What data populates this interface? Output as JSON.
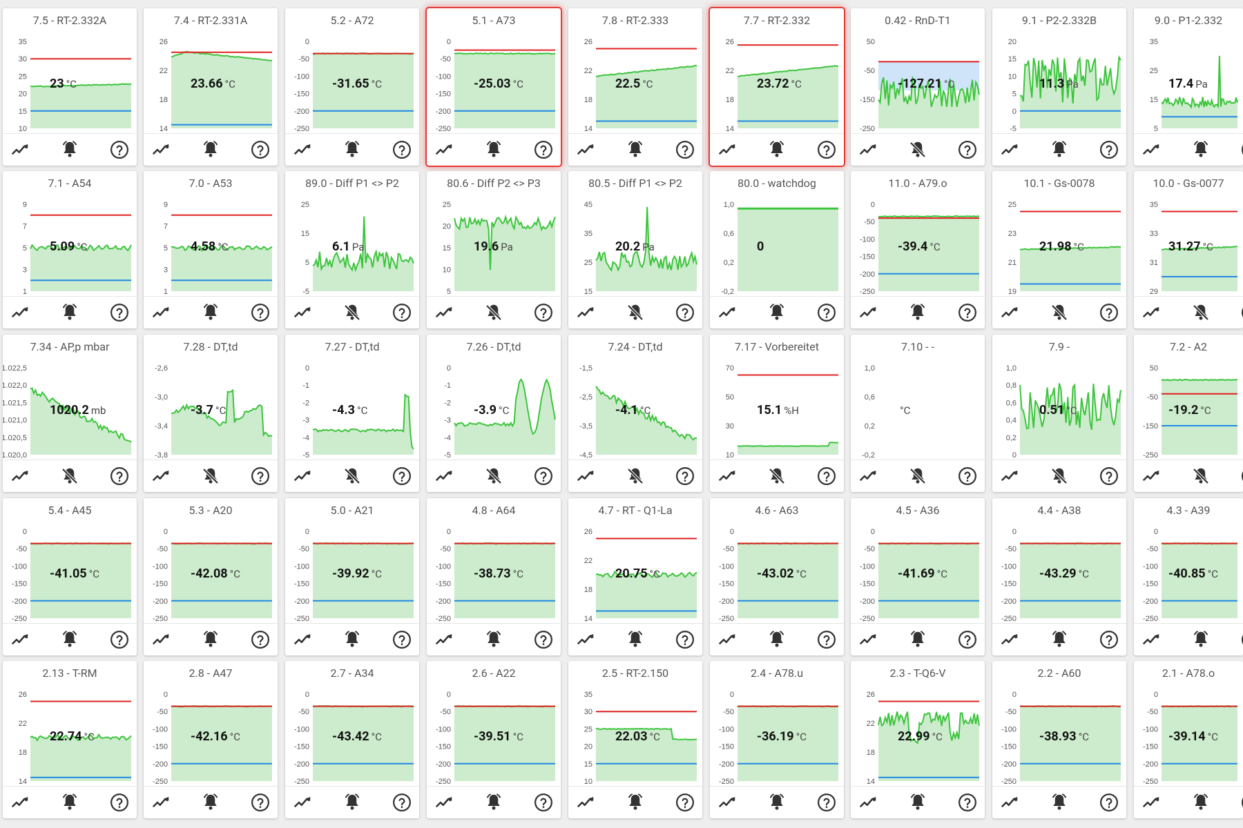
{
  "colors": {
    "upper": "#e02020",
    "upper_dark": "#a33",
    "lower": "#1e88e5",
    "line": "#3dc43d",
    "fill": "#cdeccd",
    "fill_blue": "#cfe4f8",
    "alarm": "#e53935"
  },
  "icons": {
    "chart": "chart-icon",
    "bell": "bell-icon",
    "bell_off": "bell-off-icon",
    "help": "help-icon"
  },
  "cards": [
    {
      "title": "7.5 - RT-2.332A",
      "value": "23",
      "unit": "°C",
      "ticks": [
        "35",
        "30",
        "25",
        "20",
        "15",
        "10"
      ],
      "yr": [
        10,
        35
      ],
      "upper": 30,
      "lower": 15,
      "bell": "on",
      "alarm": false,
      "style": "temp",
      "level": 0.48
    },
    {
      "title": "7.4 - RT-2.331A",
      "value": "23.66",
      "unit": "°C",
      "ticks": [
        "26",
        "22",
        "18",
        "14"
      ],
      "yr": [
        14,
        26
      ],
      "upper": 24.5,
      "lower": 14.5,
      "bell": "on",
      "alarm": false,
      "style": "tempbump",
      "level": 0.8
    },
    {
      "title": "5.2 - A72",
      "value": "-31.65",
      "unit": "°C",
      "ticks": [
        "0",
        "-50",
        "-100",
        "-150",
        "-200",
        "-250"
      ],
      "yr": [
        -250,
        0
      ],
      "upper": -35,
      "lower": -200,
      "bell": "on",
      "alarm": false,
      "style": "neg",
      "level": 0.85
    },
    {
      "title": "5.1 - A73",
      "value": "-25.03",
      "unit": "°C",
      "ticks": [
        "0",
        "-50",
        "-100",
        "-150",
        "-200",
        "-250"
      ],
      "yr": [
        -250,
        0
      ],
      "upper": -25,
      "lower": -200,
      "bell": "on",
      "alarm": true,
      "style": "neg",
      "level": 0.86
    },
    {
      "title": "7.8 - RT-2.333",
      "value": "22.5",
      "unit": "°C",
      "ticks": [
        "26",
        "22",
        "18",
        "14"
      ],
      "yr": [
        14,
        26
      ],
      "upper": 25,
      "lower": 15,
      "bell": "on",
      "alarm": false,
      "style": "rise",
      "level": 0.66
    },
    {
      "title": "7.7 - RT-2.332",
      "value": "23.72",
      "unit": "°C",
      "ticks": [
        "26",
        "22",
        "18",
        "14"
      ],
      "yr": [
        14,
        26
      ],
      "upper": 25.5,
      "lower": 15,
      "bell": "on",
      "alarm": true,
      "style": "rise",
      "level": 0.7
    },
    {
      "title": "0.42 - RnD-T1",
      "value": "-127.21",
      "unit": "°C",
      "ticks": [
        "50",
        "-50",
        "-150",
        "-250"
      ],
      "yr": [
        -250,
        50
      ],
      "upper": -20,
      "lower": null,
      "bell": "off",
      "alarm": false,
      "style": "blueband",
      "level": 0.45
    },
    {
      "title": "9.1 - P2-2.332B",
      "value": "11.3",
      "unit": "Pa",
      "ticks": [
        "20",
        "15",
        "10",
        "5",
        "0",
        "-5"
      ],
      "yr": [
        -5,
        20
      ],
      "upper": null,
      "lower": 0,
      "bell": "on",
      "alarm": false,
      "style": "noise",
      "level": 0.6
    },
    {
      "title": "9.0 - P1-2.332",
      "value": "17.4",
      "unit": "Pa",
      "ticks": [
        "35",
        "25",
        "15",
        "5"
      ],
      "yr": [
        5,
        35
      ],
      "upper": null,
      "lower": 9,
      "bell": "on",
      "alarm": false,
      "style": "spike",
      "level": 0.3
    },
    {
      "title": "7.1 - A54",
      "value": "5.09",
      "unit": "°C",
      "ticks": [
        "9",
        "7",
        "5",
        "3",
        "1"
      ],
      "yr": [
        1,
        9
      ],
      "upper": 8,
      "lower": 2,
      "bell": "on",
      "alarm": false,
      "style": "wavy",
      "level": 0.5
    },
    {
      "title": "7.0 - A53",
      "value": "4.58",
      "unit": "°C",
      "ticks": [
        "9",
        "7",
        "5",
        "3",
        "1"
      ],
      "yr": [
        1,
        9
      ],
      "upper": 8,
      "lower": 2,
      "bell": "on",
      "alarm": false,
      "style": "wavy",
      "level": 0.45
    },
    {
      "title": "89.0 - Diff P1 <> P2",
      "value": "6.1",
      "unit": "Pa",
      "ticks": [
        "25",
        "15",
        "5",
        "-5"
      ],
      "yr": [
        -5,
        25
      ],
      "upper": null,
      "lower": null,
      "bell": "off",
      "alarm": false,
      "style": "spikemid",
      "level": 0.35
    },
    {
      "title": "80.6 - Diff P2 <> P3",
      "value": "19.6",
      "unit": "Pa",
      "ticks": [
        "25",
        "20",
        "15",
        "10",
        "5"
      ],
      "yr": [
        5,
        25
      ],
      "upper": null,
      "lower": null,
      "bell": "off",
      "alarm": false,
      "style": "noisehigh",
      "level": 0.75
    },
    {
      "title": "80.5 - Diff P1 <> P2",
      "value": "20.2",
      "unit": "Pa",
      "ticks": [
        "45",
        "35",
        "25",
        "15"
      ],
      "yr": [
        15,
        45
      ],
      "upper": null,
      "lower": null,
      "bell": "off",
      "alarm": false,
      "style": "spikemid",
      "level": 0.3
    },
    {
      "title": "80.0 - watchdog",
      "value": "0",
      "unit": "",
      "ticks": [
        "1,0",
        "0,6",
        "0,2",
        "-0,2"
      ],
      "yr": [
        -0.2,
        1.0
      ],
      "upper": null,
      "lower": null,
      "bell": "on",
      "alarm": false,
      "style": "solid",
      "level": 0.5
    },
    {
      "title": "11.0 - A79.o",
      "value": "-39.4",
      "unit": "°C",
      "ticks": [
        "0",
        "-50",
        "-100",
        "-150",
        "-200",
        "-250"
      ],
      "yr": [
        -250,
        0
      ],
      "upper": -40,
      "lower": -200,
      "bell": "on",
      "alarm": false,
      "style": "neg",
      "level": 0.83
    },
    {
      "title": "10.1 - Gs-0078",
      "value": "21.98",
      "unit": "°C",
      "ticks": [
        "25",
        "23",
        "21",
        "19"
      ],
      "yr": [
        19,
        25
      ],
      "upper": 24.5,
      "lower": 19.5,
      "bell": "off",
      "alarm": false,
      "style": "temp",
      "level": 0.5
    },
    {
      "title": "10.0 - Gs-0077",
      "value": "31.27",
      "unit": "°C",
      "ticks": [
        "35",
        "33",
        "31",
        "29"
      ],
      "yr": [
        29,
        35
      ],
      "upper": 34.5,
      "lower": 30,
      "bell": "off",
      "alarm": false,
      "style": "temp",
      "level": 0.4
    },
    {
      "title": "7.34 - AP,p mbar",
      "value": "1020.2",
      "unit": "mb",
      "ticks": [
        "1.022,5",
        "1.022,0",
        "1.021,5",
        "1.021,0",
        "1.020,5",
        "1.020,0"
      ],
      "yr": [
        1020,
        1022.5
      ],
      "upper": null,
      "lower": null,
      "bell": "off",
      "alarm": false,
      "style": "down",
      "level": 0.5
    },
    {
      "title": "7.28 - DT,td",
      "value": "-3.7",
      "unit": "°C",
      "ticks": [
        "-2,6",
        "-3,0",
        "-3,4",
        "-3,8"
      ],
      "yr": [
        -3.8,
        -2.6
      ],
      "upper": null,
      "lower": null,
      "bell": "off",
      "alarm": false,
      "style": "bumpy",
      "level": 0.5
    },
    {
      "title": "7.27 - DT,td",
      "value": "-4.3",
      "unit": "°C",
      "ticks": [
        "0",
        "-1",
        "-2",
        "-3",
        "-4",
        "-5"
      ],
      "yr": [
        -5,
        0
      ],
      "upper": null,
      "lower": null,
      "bell": "off",
      "alarm": false,
      "style": "tail",
      "level": 0.3
    },
    {
      "title": "7.26 - DT,td",
      "value": "-3.9",
      "unit": "°C",
      "ticks": [
        "0",
        "-1",
        "-2",
        "-3",
        "-4",
        "-5"
      ],
      "yr": [
        -5,
        0
      ],
      "upper": null,
      "lower": null,
      "bell": "off",
      "alarm": false,
      "style": "peaks",
      "level": 0.3
    },
    {
      "title": "7.24 - DT,td",
      "value": "-4.1",
      "unit": "°C",
      "ticks": [
        "-1,5",
        "-2,5",
        "-3,5",
        "-4,5"
      ],
      "yr": [
        -4.5,
        -1.5
      ],
      "upper": null,
      "lower": null,
      "bell": "off",
      "alarm": false,
      "style": "down",
      "level": 0.5
    },
    {
      "title": "7.17 - Vorbereitet",
      "value": "15.1",
      "unit": "%H",
      "ticks": [
        "70",
        "50",
        "30",
        "10"
      ],
      "yr": [
        10,
        70
      ],
      "upper": 65,
      "lower": null,
      "bell": "off",
      "alarm": false,
      "style": "flatlow",
      "level": 0.1
    },
    {
      "title": "7.10 - -",
      "value": "",
      "unit": "°C",
      "ticks": [
        "1,0",
        "0,6",
        "0,2",
        "-0,2"
      ],
      "yr": [
        -0.2,
        1.0
      ],
      "upper": null,
      "lower": null,
      "bell": "off",
      "alarm": false,
      "style": "empty",
      "level": 0.5
    },
    {
      "title": "7.9 -",
      "value": "0.51",
      "unit": "°C",
      "ticks": [
        "1,0",
        "0,8",
        "0,6",
        "0,4",
        "0,2",
        "0"
      ],
      "yr": [
        0,
        1
      ],
      "upper": null,
      "lower": null,
      "bell": "off",
      "alarm": false,
      "style": "noise",
      "level": 0.5
    },
    {
      "title": "7.2 - A2",
      "value": "-19.2",
      "unit": "°C",
      "ticks": [
        "50",
        "-50",
        "-150",
        "-250"
      ],
      "yr": [
        -250,
        50
      ],
      "upper": -40,
      "lower": -150,
      "bell": "off",
      "alarm": false,
      "style": "neg",
      "level": 0.7
    },
    {
      "title": "5.4 - A45",
      "value": "-41.05",
      "unit": "°C",
      "ticks": [
        "0",
        "-50",
        "-100",
        "-150",
        "-200",
        "-250"
      ],
      "yr": [
        -250,
        0
      ],
      "upper": -35,
      "lower": -200,
      "bell": "on",
      "alarm": false,
      "style": "neg",
      "level": 0.83
    },
    {
      "title": "5.3 - A20",
      "value": "-42.08",
      "unit": "°C",
      "ticks": [
        "0",
        "-50",
        "-100",
        "-150",
        "-200",
        "-250"
      ],
      "yr": [
        -250,
        0
      ],
      "upper": -35,
      "lower": -200,
      "bell": "on",
      "alarm": false,
      "style": "neg",
      "level": 0.83
    },
    {
      "title": "5.0 - A21",
      "value": "-39.92",
      "unit": "°C",
      "ticks": [
        "0",
        "-50",
        "-100",
        "-150",
        "-200",
        "-250"
      ],
      "yr": [
        -250,
        0
      ],
      "upper": -35,
      "lower": -200,
      "bell": "on",
      "alarm": false,
      "style": "neg",
      "level": 0.83
    },
    {
      "title": "4.8 - A64",
      "value": "-38.73",
      "unit": "°C",
      "ticks": [
        "0",
        "-50",
        "-100",
        "-150",
        "-200",
        "-250"
      ],
      "yr": [
        -250,
        0
      ],
      "upper": -35,
      "lower": -200,
      "bell": "on",
      "alarm": false,
      "style": "neg",
      "level": 0.83
    },
    {
      "title": "4.7 - RT - Q1-La",
      "value": "20.75",
      "unit": "°C",
      "ticks": [
        "26",
        "22",
        "18",
        "14"
      ],
      "yr": [
        14,
        26
      ],
      "upper": 25,
      "lower": 15,
      "bell": "on",
      "alarm": false,
      "style": "wavy",
      "level": 0.55
    },
    {
      "title": "4.6 - A63",
      "value": "-43.02",
      "unit": "°C",
      "ticks": [
        "0",
        "-50",
        "-100",
        "-150",
        "-200",
        "-250"
      ],
      "yr": [
        -250,
        0
      ],
      "upper": -35,
      "lower": -200,
      "bell": "on",
      "alarm": false,
      "style": "neg",
      "level": 0.83
    },
    {
      "title": "4.5 - A36",
      "value": "-41.69",
      "unit": "°C",
      "ticks": [
        "0",
        "-50",
        "-100",
        "-150",
        "-200",
        "-250"
      ],
      "yr": [
        -250,
        0
      ],
      "upper": -35,
      "lower": -200,
      "bell": "on",
      "alarm": false,
      "style": "neg",
      "level": 0.83
    },
    {
      "title": "4.4 - A38",
      "value": "-43.29",
      "unit": "°C",
      "ticks": [
        "0",
        "-50",
        "-100",
        "-150",
        "-200",
        "-250"
      ],
      "yr": [
        -250,
        0
      ],
      "upper": -35,
      "lower": -200,
      "bell": "on",
      "alarm": false,
      "style": "neg",
      "level": 0.83
    },
    {
      "title": "4.3 - A39",
      "value": "-40.85",
      "unit": "°C",
      "ticks": [
        "0",
        "-50",
        "-100",
        "-150",
        "-200",
        "-250"
      ],
      "yr": [
        -250,
        0
      ],
      "upper": -35,
      "lower": -200,
      "bell": "on",
      "alarm": false,
      "style": "neg",
      "level": 0.83
    },
    {
      "title": "2.13 - T-RM",
      "value": "22.74",
      "unit": "°C",
      "ticks": [
        "26",
        "22",
        "18",
        "14"
      ],
      "yr": [
        14,
        26
      ],
      "upper": 25,
      "lower": 14.5,
      "bell": "on",
      "alarm": false,
      "style": "wavy",
      "level": 0.68
    },
    {
      "title": "2.8 - A47",
      "value": "-42.16",
      "unit": "°C",
      "ticks": [
        "0",
        "-50",
        "-100",
        "-150",
        "-200",
        "-250"
      ],
      "yr": [
        -250,
        0
      ],
      "upper": -35,
      "lower": -200,
      "bell": "on",
      "alarm": false,
      "style": "neg",
      "level": 0.83
    },
    {
      "title": "2.7 - A34",
      "value": "-43.42",
      "unit": "°C",
      "ticks": [
        "0",
        "-50",
        "-100",
        "-150",
        "-200",
        "-250"
      ],
      "yr": [
        -250,
        0
      ],
      "upper": -35,
      "lower": -200,
      "bell": "on",
      "alarm": false,
      "style": "neg",
      "level": 0.83
    },
    {
      "title": "2.6 - A22",
      "value": "-39.51",
      "unit": "°C",
      "ticks": [
        "0",
        "-50",
        "-100",
        "-150",
        "-200",
        "-250"
      ],
      "yr": [
        -250,
        0
      ],
      "upper": -35,
      "lower": -200,
      "bell": "on",
      "alarm": false,
      "style": "neg",
      "level": 0.83
    },
    {
      "title": "2.5 - RT-2.150",
      "value": "22.03",
      "unit": "°C",
      "ticks": [
        "35",
        "30",
        "25",
        "20",
        "15",
        "10"
      ],
      "yr": [
        10,
        35
      ],
      "upper": 30,
      "lower": 15,
      "bell": "on",
      "alarm": false,
      "style": "step",
      "level": 0.5
    },
    {
      "title": "2.4 - A78.u",
      "value": "-36.19",
      "unit": "°C",
      "ticks": [
        "0",
        "-50",
        "-100",
        "-150",
        "-200",
        "-250"
      ],
      "yr": [
        -250,
        0
      ],
      "upper": -35,
      "lower": -200,
      "bell": "on",
      "alarm": false,
      "style": "neg",
      "level": 0.83
    },
    {
      "title": "2.3 - T-Q6-V",
      "value": "22.99",
      "unit": "°C",
      "ticks": [
        "26",
        "22",
        "18",
        "14"
      ],
      "yr": [
        14,
        26
      ],
      "upper": 25,
      "lower": 14.5,
      "bell": "on",
      "alarm": false,
      "style": "noisedip",
      "level": 0.72
    },
    {
      "title": "2.2 - A60",
      "value": "-38.93",
      "unit": "°C",
      "ticks": [
        "0",
        "-50",
        "-100",
        "-150",
        "-200",
        "-250"
      ],
      "yr": [
        -250,
        0
      ],
      "upper": -35,
      "lower": -200,
      "bell": "on",
      "alarm": false,
      "style": "neg",
      "level": 0.83
    },
    {
      "title": "2.1 - A78.o",
      "value": "-39.14",
      "unit": "°C",
      "ticks": [
        "0",
        "-50",
        "-100",
        "-150",
        "-200",
        "-250"
      ],
      "yr": [
        -250,
        0
      ],
      "upper": -35,
      "lower": -200,
      "bell": "on",
      "alarm": false,
      "style": "neg",
      "level": 0.83
    }
  ]
}
